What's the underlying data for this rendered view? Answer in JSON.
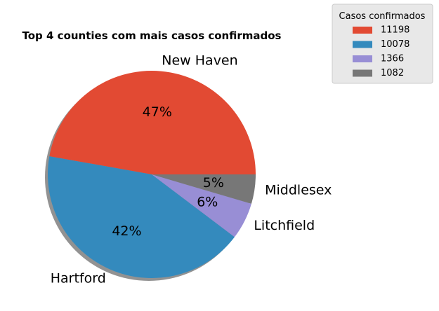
{
  "chart_data": {
    "type": "pie",
    "title": "Top 4 counties com mais casos confirmados",
    "categories": [
      "New Haven",
      "Hartford",
      "Litchfield",
      "Middlesex"
    ],
    "values": [
      11198,
      10078,
      1366,
      1082
    ],
    "percent_labels": [
      "47%",
      "42%",
      "6%",
      "5%"
    ],
    "colors": [
      "#E24A33",
      "#348ABD",
      "#988ED5",
      "#777777"
    ],
    "shadow": true,
    "legend": {
      "title": "Casos confirmados",
      "entries": [
        "11198",
        "10078",
        "1366",
        "1082"
      ],
      "placement": "top-right outside"
    }
  }
}
